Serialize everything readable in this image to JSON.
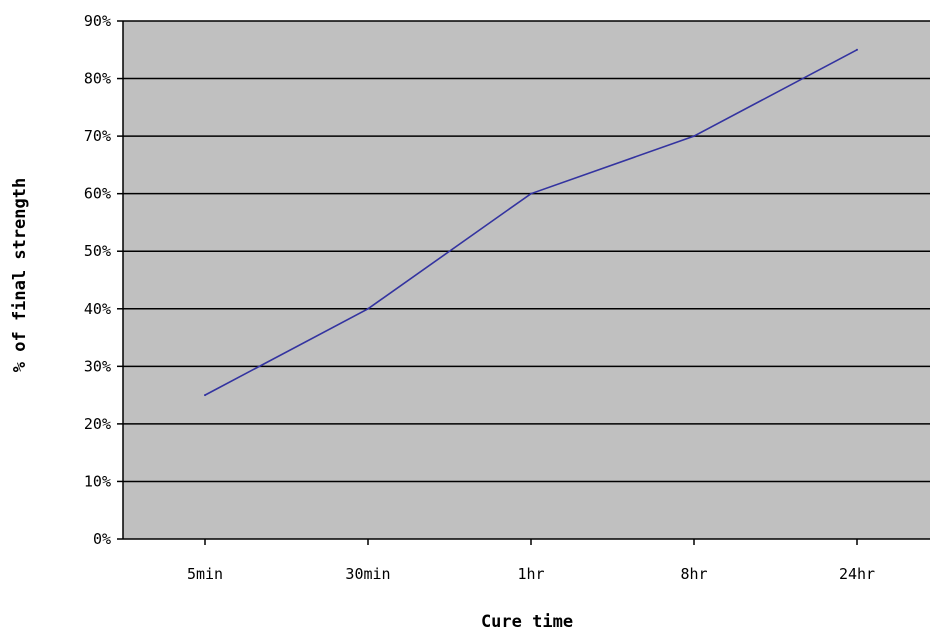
{
  "chart_data": {
    "type": "line",
    "title": "",
    "xlabel": "Cure time",
    "ylabel": "% of final strength",
    "categories": [
      "5min",
      "30min",
      "1hr",
      "8hr",
      "24hr"
    ],
    "series": [
      {
        "values": [
          25,
          40,
          60,
          70,
          85
        ]
      }
    ],
    "ylim": [
      0,
      90
    ],
    "ytick_step": 10,
    "ytick_suffix": "%",
    "grid": true,
    "legend": "none",
    "colors": {
      "plot_background": "#c0c0c0",
      "gridline": "#000000",
      "line": "#3333a0"
    }
  }
}
